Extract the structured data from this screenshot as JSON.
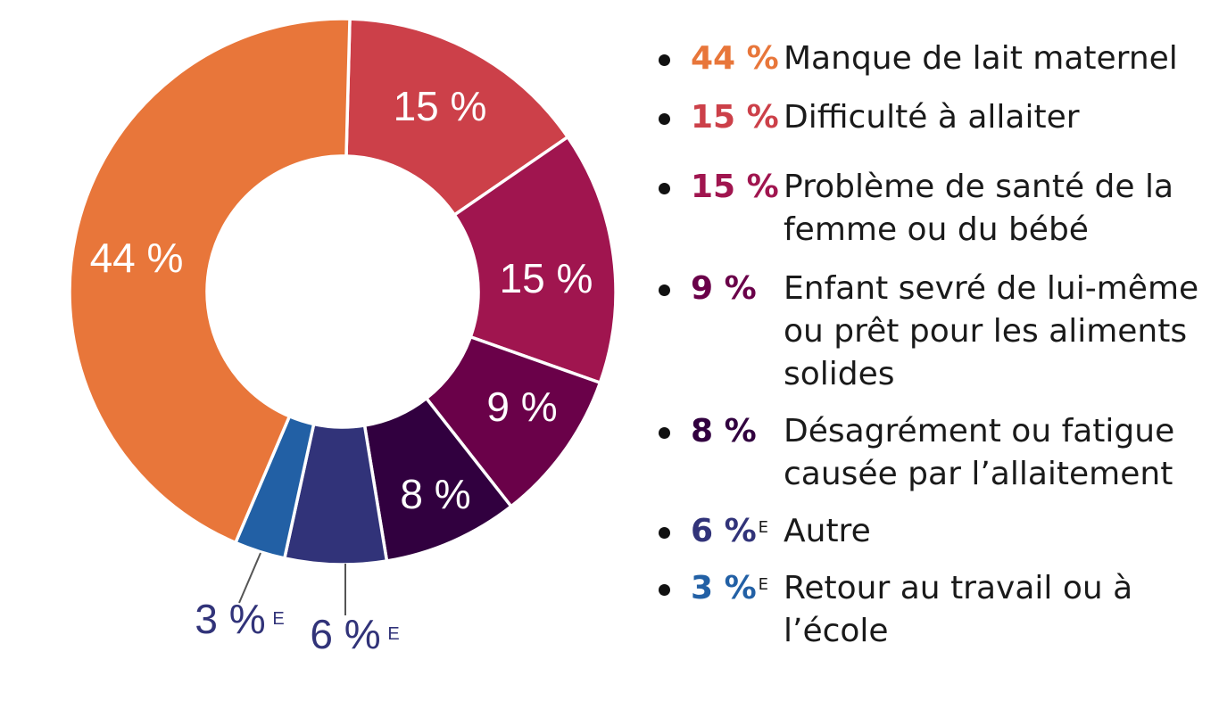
{
  "chart_data": {
    "type": "pie",
    "variant": "donut",
    "slices": [
      {
        "value": 15,
        "label": "15 %",
        "legend_value": "15 %",
        "legend_sup": "",
        "legend_text": "Difficulté à allaiter",
        "color": "#cc4049"
      },
      {
        "value": 15,
        "label": "15 %",
        "legend_value": "15 %",
        "legend_sup": "",
        "legend_text": "Problème de santé de la femme ou du bébé",
        "color": "#a0154f"
      },
      {
        "value": 9,
        "label": "9 %",
        "legend_value": "9 %",
        "legend_sup": "",
        "legend_text": "Enfant sevré de lui-même ou prêt pour les aliments solides",
        "color": "#6a0149"
      },
      {
        "value": 8,
        "label": "8 %",
        "legend_value": "8 %",
        "legend_sup": "",
        "legend_text": "Désagrément ou fatigue causée par l’allaitement",
        "color": "#31003f"
      },
      {
        "value": 6,
        "label": "6 %",
        "label_sup": "E",
        "legend_value": "6 %",
        "legend_sup": "E",
        "legend_text": "Autre",
        "color": "#313379"
      },
      {
        "value": 3,
        "label": "3 %",
        "label_sup": "E",
        "legend_value": "3 %",
        "legend_sup": "E",
        "legend_text": "Retour au travail ou à l’école",
        "color": "#2260a5"
      },
      {
        "value": 44,
        "label": "44 %",
        "legend_value": "44 %",
        "legend_sup": "",
        "legend_text": "Manque de lait maternel",
        "color": "#e8763a"
      }
    ],
    "legend_order": [
      6,
      0,
      1,
      2,
      3,
      4,
      5
    ],
    "legend_placement": "right",
    "outside_label_color": "#313379"
  }
}
